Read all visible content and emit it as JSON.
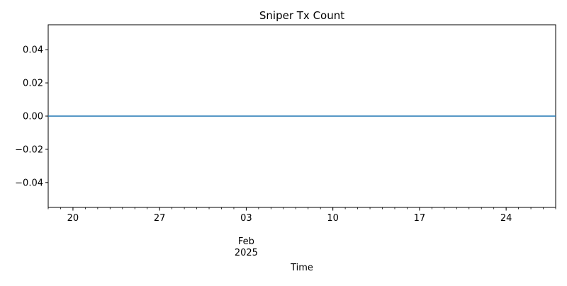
{
  "chart_data": {
    "type": "line",
    "title": "Sniper Tx Count",
    "xlabel": "Time",
    "ylabel": "",
    "x_axis": {
      "kind": "date",
      "start": "2025-01-18",
      "end": "2025-02-28",
      "major_ticks": [
        {
          "date": "2025-01-20",
          "label": "20"
        },
        {
          "date": "2025-01-27",
          "label": "27"
        },
        {
          "date": "2025-02-03",
          "label": "03",
          "sublabel": "Feb",
          "sublabel2": "2025"
        },
        {
          "date": "2025-02-10",
          "label": "10"
        },
        {
          "date": "2025-02-17",
          "label": "17"
        },
        {
          "date": "2025-02-24",
          "label": "24"
        }
      ],
      "minor_ticks": "daily"
    },
    "ylim": [
      -0.055,
      0.055
    ],
    "y_ticks": [
      {
        "value": 0.04,
        "label": "0.04"
      },
      {
        "value": 0.02,
        "label": "0.02"
      },
      {
        "value": 0.0,
        "label": "0.00"
      },
      {
        "value": -0.02,
        "label": "−0.02"
      },
      {
        "value": -0.04,
        "label": "−0.04"
      }
    ],
    "series": [
      {
        "color": "#1f77b4",
        "points": [
          {
            "x": "2025-01-18",
            "y": 0
          },
          {
            "x": "2025-02-28",
            "y": 0
          }
        ]
      }
    ],
    "grid": false,
    "legend": "none"
  }
}
